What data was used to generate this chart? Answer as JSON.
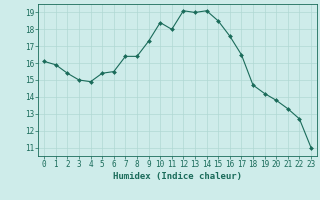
{
  "x": [
    0,
    1,
    2,
    3,
    4,
    5,
    6,
    7,
    8,
    9,
    10,
    11,
    12,
    13,
    14,
    15,
    16,
    17,
    18,
    19,
    20,
    21,
    22,
    23
  ],
  "y": [
    16.1,
    15.9,
    15.4,
    15.0,
    14.9,
    15.4,
    15.5,
    16.4,
    16.4,
    17.3,
    18.4,
    18.0,
    19.1,
    19.0,
    19.1,
    18.5,
    17.6,
    16.5,
    14.7,
    14.2,
    13.8,
    13.3,
    12.7,
    11.0
  ],
  "line_color": "#1a6b5a",
  "marker": "D",
  "marker_size": 2.0,
  "bg_color": "#ceecea",
  "grid_major_color": "#b0d8d4",
  "grid_minor_color": "#ceecea",
  "xlabel": "Humidex (Indice chaleur)",
  "xlim": [
    -0.5,
    23.5
  ],
  "ylim": [
    10.5,
    19.5
  ],
  "yticks": [
    11,
    12,
    13,
    14,
    15,
    16,
    17,
    18,
    19
  ],
  "xticks": [
    0,
    1,
    2,
    3,
    4,
    5,
    6,
    7,
    8,
    9,
    10,
    11,
    12,
    13,
    14,
    15,
    16,
    17,
    18,
    19,
    20,
    21,
    22,
    23
  ],
  "tick_color": "#1a6b5a",
  "label_fontsize": 6.5,
  "tick_fontsize": 5.5
}
